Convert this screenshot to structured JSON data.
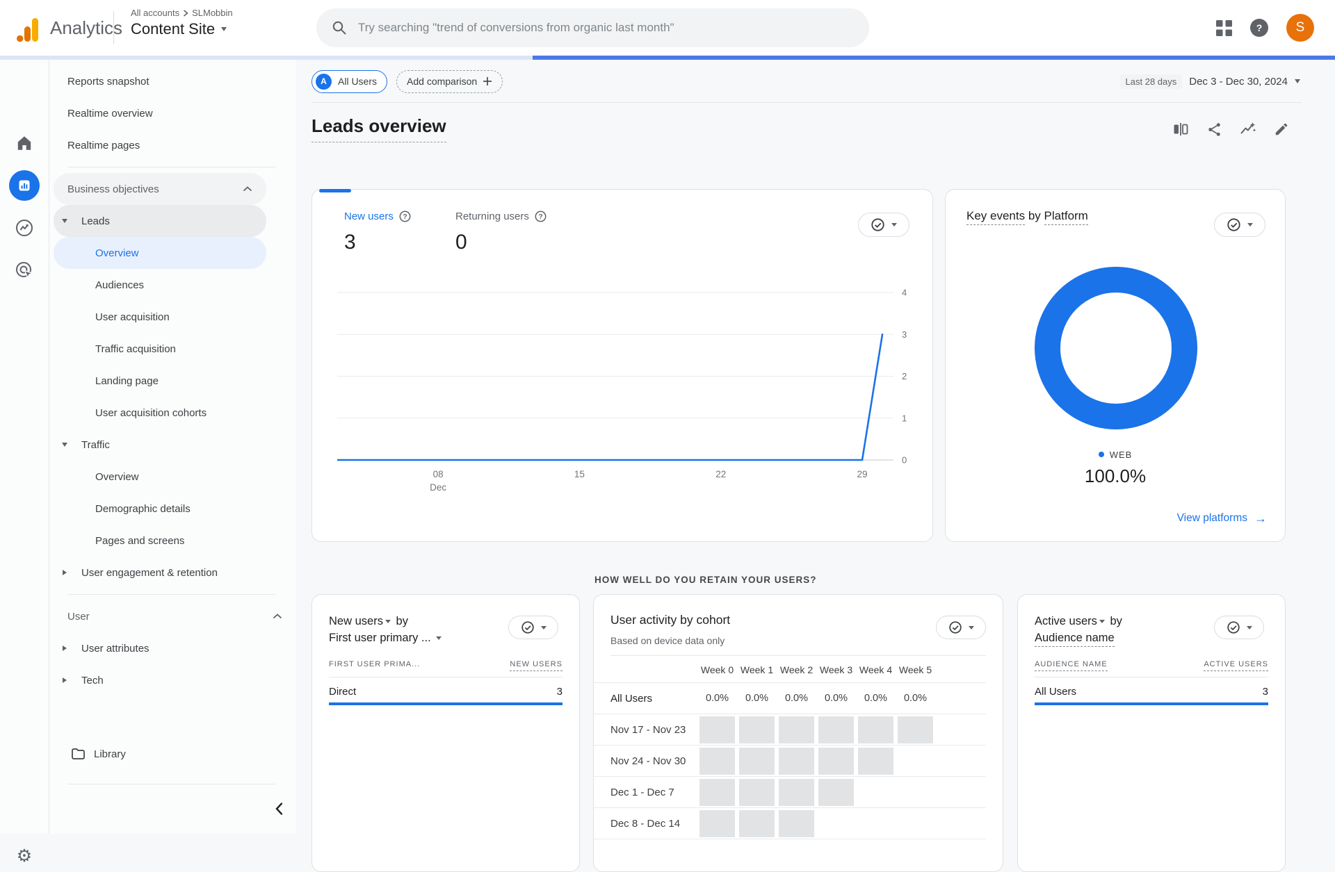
{
  "colors": {
    "accent": "#1a73e8",
    "avatar_bg": "#e8710a",
    "progress_fill": "#4b79e8",
    "cohort_cell": "#e2e3e5",
    "logo_amber": "#f9ab00",
    "logo_orange": "#e37400"
  },
  "icons": {
    "help": "?",
    "gear": "⚙",
    "arrow_right": "→"
  },
  "header": {
    "product": "Analytics",
    "breadcrumb": {
      "all_accounts": "All accounts",
      "account": "SLMobbin"
    },
    "property": "Content Site",
    "search_placeholder": "Try searching \"trend of conversions from organic last month\"",
    "avatar_initial": "S"
  },
  "sidebar": {
    "items": {
      "reports_snapshot": "Reports snapshot",
      "realtime_overview": "Realtime overview",
      "realtime_pages": "Realtime pages",
      "business_objectives": "Business objectives",
      "leads": "Leads",
      "leads_overview": "Overview",
      "audiences": "Audiences",
      "user_acquisition": "User acquisition",
      "traffic_acquisition": "Traffic acquisition",
      "landing_page": "Landing page",
      "user_acquisition_cohorts": "User acquisition cohorts",
      "traffic": "Traffic",
      "traffic_overview": "Overview",
      "demographic_details": "Demographic details",
      "pages_and_screens": "Pages and screens",
      "user_engagement_retention": "User engagement & retention",
      "user": "User",
      "user_attributes": "User attributes",
      "tech": "Tech",
      "library": "Library"
    }
  },
  "toolbar": {
    "badge": "A",
    "all_users": "All Users",
    "add_comparison": "Add comparison",
    "range_label": "Last 28 days",
    "range_value": "Dec 3 - Dec 30, 2024"
  },
  "page": {
    "title": "Leads overview",
    "retention_question": "HOW WELL DO YOU RETAIN YOUR USERS?"
  },
  "cards": {
    "new_users_trend": {
      "metric1_label": "New users",
      "metric1_value": "3",
      "metric2_label": "Returning users",
      "metric2_value": "0",
      "chart_data": {
        "type": "line",
        "series_name": "New users",
        "x_axis": "day of Dec 3 - Dec 30, 2024",
        "values_by_day": [
          0,
          0,
          0,
          0,
          0,
          0,
          0,
          0,
          0,
          0,
          0,
          0,
          0,
          0,
          0,
          0,
          0,
          0,
          0,
          0,
          0,
          0,
          0,
          0,
          0,
          0,
          0,
          3
        ],
        "x_ticks": [
          {
            "lines": [
              "08",
              "Dec"
            ],
            "day": 5
          },
          {
            "lines": [
              "15"
            ],
            "day": 12
          },
          {
            "lines": [
              "22"
            ],
            "day": 19
          },
          {
            "lines": [
              "29"
            ],
            "day": 26
          }
        ],
        "y_ticks": [
          0,
          1,
          2,
          3,
          4
        ],
        "ylim": [
          0,
          4
        ],
        "grid": true,
        "line_color": "#1a73e8"
      }
    },
    "key_events": {
      "title_metric": "Key events",
      "title_by": "by",
      "title_dimension": "Platform",
      "legend_label": "WEB",
      "legend_value": "100.0%",
      "link_label": "View platforms",
      "chart_data": {
        "type": "pie",
        "labels": [
          "WEB"
        ],
        "values": [
          100.0
        ],
        "colors": [
          "#1a73e8"
        ],
        "legend_position": "bottom"
      }
    },
    "new_users_by_channel": {
      "title_metric": "New users",
      "title_by": "by",
      "title_dimension": "First user primary ...",
      "col1": "FIRST USER PRIMA...",
      "col2": "NEW USERS",
      "rows": [
        {
          "label": "Direct",
          "value": "3",
          "bar_pct": 100
        }
      ]
    },
    "cohort": {
      "title": "User activity by cohort",
      "subtitle": "Based on device data only",
      "week_headers": [
        "Week 0",
        "Week 1",
        "Week 2",
        "Week 3",
        "Week 4",
        "Week 5"
      ],
      "all_users_label": "All Users",
      "all_users_values": [
        "0.0%",
        "0.0%",
        "0.0%",
        "0.0%",
        "0.0%",
        "0.0%"
      ],
      "rows": [
        {
          "label": "Nov 17 - Nov 23",
          "filled_weeks": 6
        },
        {
          "label": "Nov 24 - Nov 30",
          "filled_weeks": 5
        },
        {
          "label": "Dec 1 - Dec 7",
          "filled_weeks": 4
        },
        {
          "label": "Dec 8 - Dec 14",
          "filled_weeks": 3
        }
      ]
    },
    "active_users": {
      "title_metric": "Active users",
      "title_by": "by",
      "title_dimension": "Audience name",
      "col1": "AUDIENCE NAME",
      "col2": "ACTIVE USERS",
      "rows": [
        {
          "label": "All Users",
          "value": "3",
          "bar_pct": 100
        }
      ]
    }
  }
}
